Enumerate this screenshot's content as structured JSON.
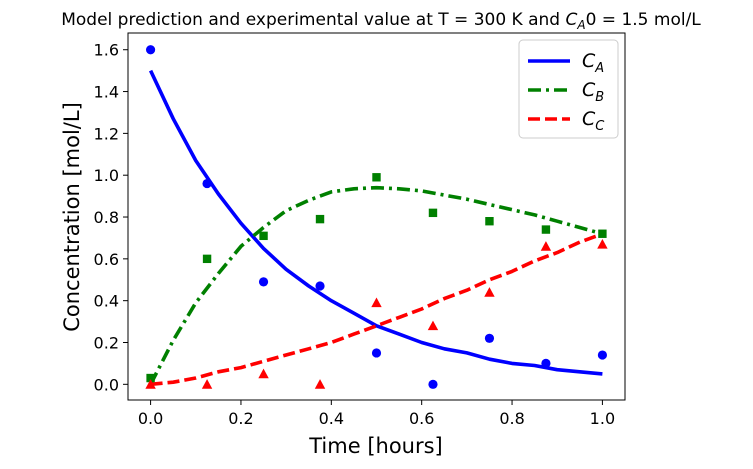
{
  "chart_data": {
    "type": "line",
    "title_parts": [
      "Model prediction and experimental value at T = 300 K and ",
      "C",
      "A",
      "0 = 1.5 mol/L"
    ],
    "xlabel": "Time [hours]",
    "ylabel": "Concentration [mol/L]",
    "xlim": [
      -0.05,
      1.05
    ],
    "ylim": [
      -0.075,
      1.68
    ],
    "xticks": [
      0.0,
      0.2,
      0.4,
      0.6,
      0.8,
      1.0
    ],
    "xtick_labels": [
      "0.0",
      "0.2",
      "0.4",
      "0.6",
      "0.8",
      "1.0"
    ],
    "yticks": [
      0.0,
      0.2,
      0.4,
      0.6,
      0.8,
      1.0,
      1.2,
      1.4,
      1.6
    ],
    "ytick_labels": [
      "0.0",
      "0.2",
      "0.4",
      "0.6",
      "0.8",
      "1.0",
      "1.2",
      "1.4",
      "1.6"
    ],
    "grid": false,
    "legend_position": "top-right",
    "model_t": [
      0,
      0.05,
      0.1,
      0.15,
      0.2,
      0.25,
      0.3,
      0.35,
      0.4,
      0.45,
      0.5,
      0.55,
      0.6,
      0.65,
      0.7,
      0.75,
      0.8,
      0.85,
      0.9,
      0.95,
      1.0
    ],
    "series": [
      {
        "id": "ca",
        "legend_main": "C",
        "legend_sub": "A",
        "color": "#0000ff",
        "line_style": "solid",
        "marker": "circle",
        "model": [
          1.5,
          1.27,
          1.07,
          0.91,
          0.77,
          0.65,
          0.55,
          0.47,
          0.4,
          0.34,
          0.28,
          0.24,
          0.2,
          0.17,
          0.15,
          0.12,
          0.1,
          0.09,
          0.07,
          0.06,
          0.05
        ],
        "exp_t": [
          0.0,
          0.125,
          0.25,
          0.375,
          0.5,
          0.625,
          0.75,
          0.875,
          1.0
        ],
        "exp": [
          1.6,
          0.96,
          0.49,
          0.47,
          0.15,
          0.0,
          0.22,
          0.1,
          0.14
        ]
      },
      {
        "id": "cb",
        "legend_main": "C",
        "legend_sub": "B",
        "color": "#008000",
        "line_style": "dashdot",
        "marker": "square",
        "model": [
          0.0,
          0.21,
          0.39,
          0.53,
          0.66,
          0.75,
          0.83,
          0.88,
          0.92,
          0.935,
          0.94,
          0.935,
          0.925,
          0.905,
          0.885,
          0.86,
          0.835,
          0.81,
          0.78,
          0.75,
          0.72
        ],
        "exp_t": [
          0.0,
          0.125,
          0.25,
          0.375,
          0.5,
          0.625,
          0.75,
          0.875,
          1.0
        ],
        "exp": [
          0.03,
          0.6,
          0.71,
          0.79,
          0.99,
          0.82,
          0.78,
          0.74,
          0.72
        ]
      },
      {
        "id": "cc",
        "legend_main": "C",
        "legend_sub": "C",
        "color": "#ff0000",
        "line_style": "dashed",
        "marker": "triangle",
        "model": [
          0.0,
          0.01,
          0.03,
          0.06,
          0.08,
          0.11,
          0.14,
          0.17,
          0.2,
          0.24,
          0.28,
          0.32,
          0.36,
          0.41,
          0.45,
          0.5,
          0.54,
          0.59,
          0.63,
          0.68,
          0.72
        ],
        "exp_t": [
          0.0,
          0.125,
          0.25,
          0.375,
          0.5,
          0.625,
          0.75,
          0.875,
          1.0
        ],
        "exp": [
          0.0,
          0.0,
          0.05,
          0.0,
          0.39,
          0.28,
          0.44,
          0.66,
          0.67
        ]
      }
    ]
  }
}
